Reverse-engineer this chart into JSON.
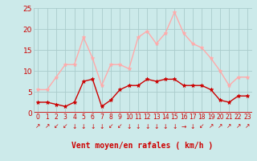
{
  "hours": [
    0,
    1,
    2,
    3,
    4,
    5,
    6,
    7,
    8,
    9,
    10,
    11,
    12,
    13,
    14,
    15,
    16,
    17,
    18,
    19,
    20,
    21,
    22,
    23
  ],
  "wind_avg": [
    2.5,
    2.5,
    2.0,
    1.5,
    2.5,
    7.5,
    8.0,
    1.5,
    3.0,
    5.5,
    6.5,
    6.5,
    8.0,
    7.5,
    8.0,
    8.0,
    6.5,
    6.5,
    6.5,
    5.5,
    3.0,
    2.5,
    4.0,
    4.0
  ],
  "wind_gust": [
    5.5,
    5.5,
    8.5,
    11.5,
    11.5,
    18.0,
    13.0,
    6.5,
    11.5,
    11.5,
    10.5,
    18.0,
    19.5,
    16.5,
    19.0,
    24.0,
    19.0,
    16.5,
    15.5,
    13.0,
    10.0,
    6.5,
    8.5,
    8.5
  ],
  "avg_color": "#cc0000",
  "gust_color": "#ffaaaa",
  "bg_color": "#cceaea",
  "grid_color": "#aacccc",
  "text_color": "#cc0000",
  "xlabel": "Vent moyen/en rafales ( km/h )",
  "ylim": [
    0,
    25
  ],
  "yticks": [
    0,
    5,
    10,
    15,
    20,
    25
  ],
  "arrow_symbols": [
    "↗",
    "↗",
    "↙",
    "↙",
    "↓",
    "↓",
    "↓",
    "↓",
    "↙",
    "↙",
    "↓",
    "↓",
    "↓",
    "↓",
    "↓",
    "↓",
    "→",
    "↓",
    "↙",
    "↗",
    "↗",
    "↗",
    "↗",
    "↗"
  ]
}
